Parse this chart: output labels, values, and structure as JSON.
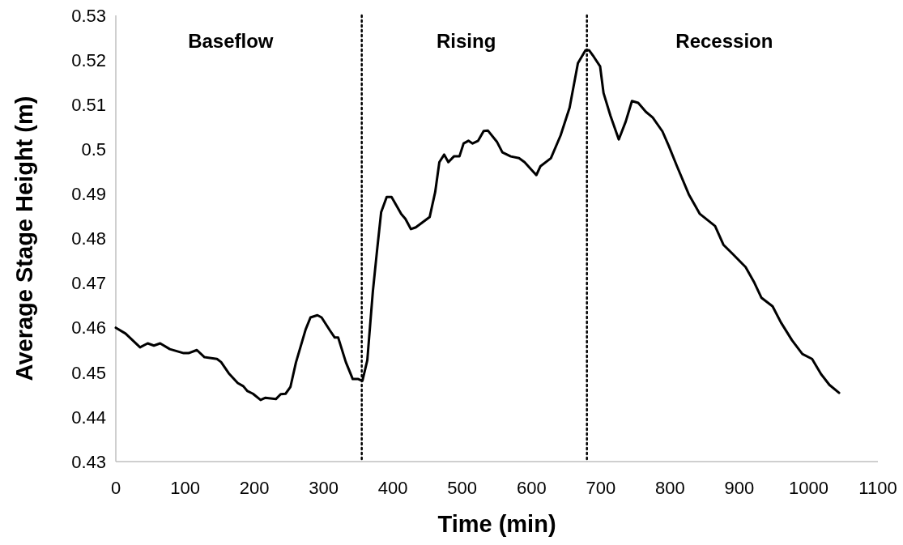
{
  "chart_data": {
    "type": "line",
    "xlabel": "Time (min)",
    "ylabel": "Average Stage Height (m)",
    "xlim": [
      0,
      1100
    ],
    "xticks": [
      0,
      100,
      200,
      300,
      400,
      500,
      600,
      700,
      800,
      900,
      1000,
      1100
    ],
    "ylim": [
      0.43,
      0.53
    ],
    "yticks": [
      0.43,
      0.44,
      0.45,
      0.46,
      0.47,
      0.48,
      0.49,
      {
        "value": 0.5,
        "label": "0.5"
      },
      0.51,
      0.52,
      0.53
    ],
    "grid": false,
    "marker": "none",
    "line_style": "solid",
    "annotations": [
      "Baseflow",
      "Rising",
      "Recession"
    ],
    "ref_lines": [
      {
        "axis": "x",
        "value": 355,
        "color": "#000000",
        "line_style": "dotted"
      },
      {
        "axis": "x",
        "value": 680,
        "color": "#000000",
        "line_style": "dotted"
      }
    ],
    "series": [
      {
        "color": "#000000",
        "x": [
          0,
          14,
          35,
          46,
          55,
          64,
          78,
          98,
          105,
          117,
          128,
          146,
          152,
          163,
          176,
          184,
          190,
          198,
          209,
          216,
          231,
          238,
          245,
          252,
          260,
          274,
          281,
          291,
          297,
          309,
          316,
          321,
          332,
          342,
          350,
          356,
          363,
          371,
          377,
          383,
          391,
          398,
          412,
          418,
          426,
          433,
          453,
          461,
          467,
          474,
          480,
          488,
          496,
          502,
          509,
          515,
          523,
          531,
          537,
          550,
          558,
          570,
          582,
          590,
          607,
          613,
          628,
          642,
          655,
          667,
          678,
          683,
          690,
          699,
          704,
          714,
          726,
          736,
          745,
          754,
          765,
          775,
          789,
          798,
          810,
          827,
          843,
          865,
          877,
          890,
          909,
          921,
          932,
          948,
          960,
          976,
          991,
          1005,
          1018,
          1030,
          1044
        ],
        "values": [
          0.46,
          0.4587,
          0.4556,
          0.4565,
          0.456,
          0.4565,
          0.4552,
          0.4543,
          0.4543,
          0.455,
          0.4534,
          0.453,
          0.4523,
          0.4498,
          0.4476,
          0.4469,
          0.4458,
          0.4452,
          0.4438,
          0.4443,
          0.444,
          0.4451,
          0.4452,
          0.4467,
          0.4522,
          0.4596,
          0.4623,
          0.4628,
          0.4623,
          0.4594,
          0.4578,
          0.4578,
          0.4523,
          0.4485,
          0.4485,
          0.4481,
          0.4527,
          0.4681,
          0.4772,
          0.4859,
          0.4893,
          0.4893,
          0.4855,
          0.4844,
          0.4821,
          0.4825,
          0.4848,
          0.4904,
          0.4971,
          0.4988,
          0.4971,
          0.4984,
          0.4984,
          0.5013,
          0.5019,
          0.5013,
          0.5019,
          0.5041,
          0.5042,
          0.5017,
          0.4993,
          0.4984,
          0.498,
          0.4971,
          0.4942,
          0.4962,
          0.498,
          0.5031,
          0.5093,
          0.5193,
          0.5222,
          0.5222,
          0.5207,
          0.5186,
          0.5126,
          0.5075,
          0.5022,
          0.5062,
          0.5108,
          0.5104,
          0.5084,
          0.5071,
          0.504,
          0.5008,
          0.4962,
          0.4899,
          0.4855,
          0.4828,
          0.4786,
          0.4766,
          0.4736,
          0.4703,
          0.4667,
          0.4648,
          0.4612,
          0.4572,
          0.4541,
          0.453,
          0.4496,
          0.4472,
          0.4454
        ]
      }
    ]
  }
}
